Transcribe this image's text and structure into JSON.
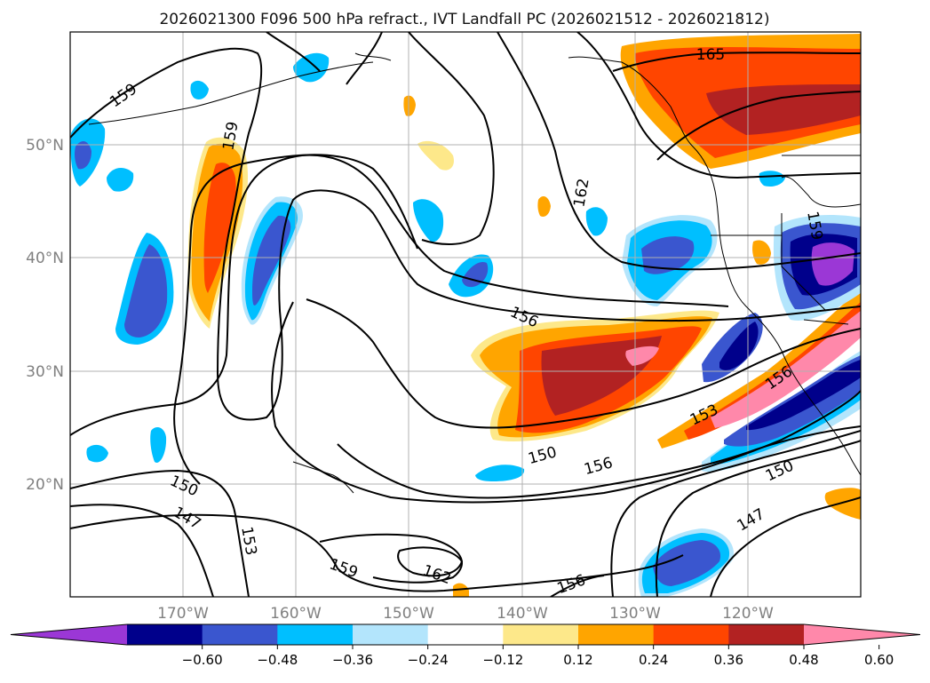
{
  "map": {
    "title": "2026021300 F096 500 hPa refract., IVT Landfall PC (2026021512 - 2026021812)",
    "lat_labels": [
      "50°N",
      "40°N",
      "30°N",
      "20°N"
    ],
    "lon_labels": [
      "170°W",
      "160°W",
      "150°W",
      "140°W",
      "130°W",
      "120°W"
    ],
    "contour_labels": [
      "159",
      "159",
      "165",
      "162",
      "159",
      "156",
      "153",
      "156",
      "150",
      "156",
      "150",
      "153",
      "150",
      "147",
      "147",
      "159",
      "162",
      "156"
    ],
    "colorbar": {
      "ticks": [
        "−0.60",
        "−0.48",
        "−0.36",
        "−0.24",
        "−0.12",
        "0.12",
        "0.24",
        "0.36",
        "0.48",
        "0.60"
      ],
      "colors": [
        "#9b37d6",
        "#00008b",
        "#3a56cf",
        "#00bfff",
        "#b3e5fc",
        "#ffffff",
        "#fde88a",
        "#ffa500",
        "#ff4500",
        "#b22222",
        "#ff88aa"
      ]
    }
  }
}
